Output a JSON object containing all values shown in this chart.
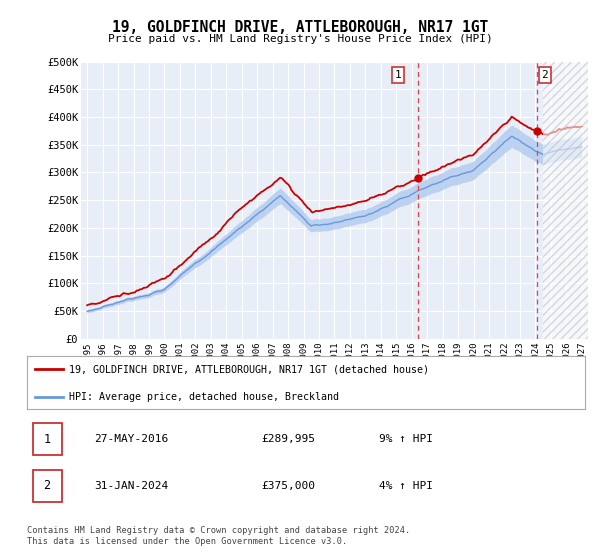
{
  "title": "19, GOLDFINCH DRIVE, ATTLEBOROUGH, NR17 1GT",
  "subtitle": "Price paid vs. HM Land Registry's House Price Index (HPI)",
  "ylim": [
    0,
    500000
  ],
  "yticks": [
    0,
    50000,
    100000,
    150000,
    200000,
    250000,
    300000,
    350000,
    400000,
    450000,
    500000
  ],
  "ytick_labels": [
    "£0",
    "£50K",
    "£100K",
    "£150K",
    "£200K",
    "£250K",
    "£300K",
    "£350K",
    "£400K",
    "£450K",
    "£500K"
  ],
  "bg_color": "#ffffff",
  "plot_bg_color": "#e8eef8",
  "grid_color": "#ffffff",
  "hpi_fill_color": "#b8cef0",
  "hpi_line_color": "#6699dd",
  "price_line_color": "#cc0000",
  "marker_color": "#cc0000",
  "vline_color": "#dd4444",
  "hatch_color": "#cccccc",
  "annotation_border_color": "#cc3333",
  "legend_line1_color": "#cc0000",
  "legend_line2_color": "#6699dd",
  "point1_date_num": 2016.41,
  "point1_price": 289995,
  "point2_date_num": 2024.08,
  "point2_price": 375000,
  "xlim_left": 1994.6,
  "xlim_right": 2027.4,
  "hatch_start": 2024.5,
  "footer": "Contains HM Land Registry data © Crown copyright and database right 2024.\nThis data is licensed under the Open Government Licence v3.0.",
  "legend_entry1": "19, GOLDFINCH DRIVE, ATTLEBOROUGH, NR17 1GT (detached house)",
  "legend_entry2": "HPI: Average price, detached house, Breckland",
  "table_row1_num": "1",
  "table_row1_date": "27-MAY-2016",
  "table_row1_price": "£289,995",
  "table_row1_hpi": "9% ↑ HPI",
  "table_row2_num": "2",
  "table_row2_date": "31-JAN-2024",
  "table_row2_price": "£375,000",
  "table_row2_hpi": "4% ↑ HPI"
}
